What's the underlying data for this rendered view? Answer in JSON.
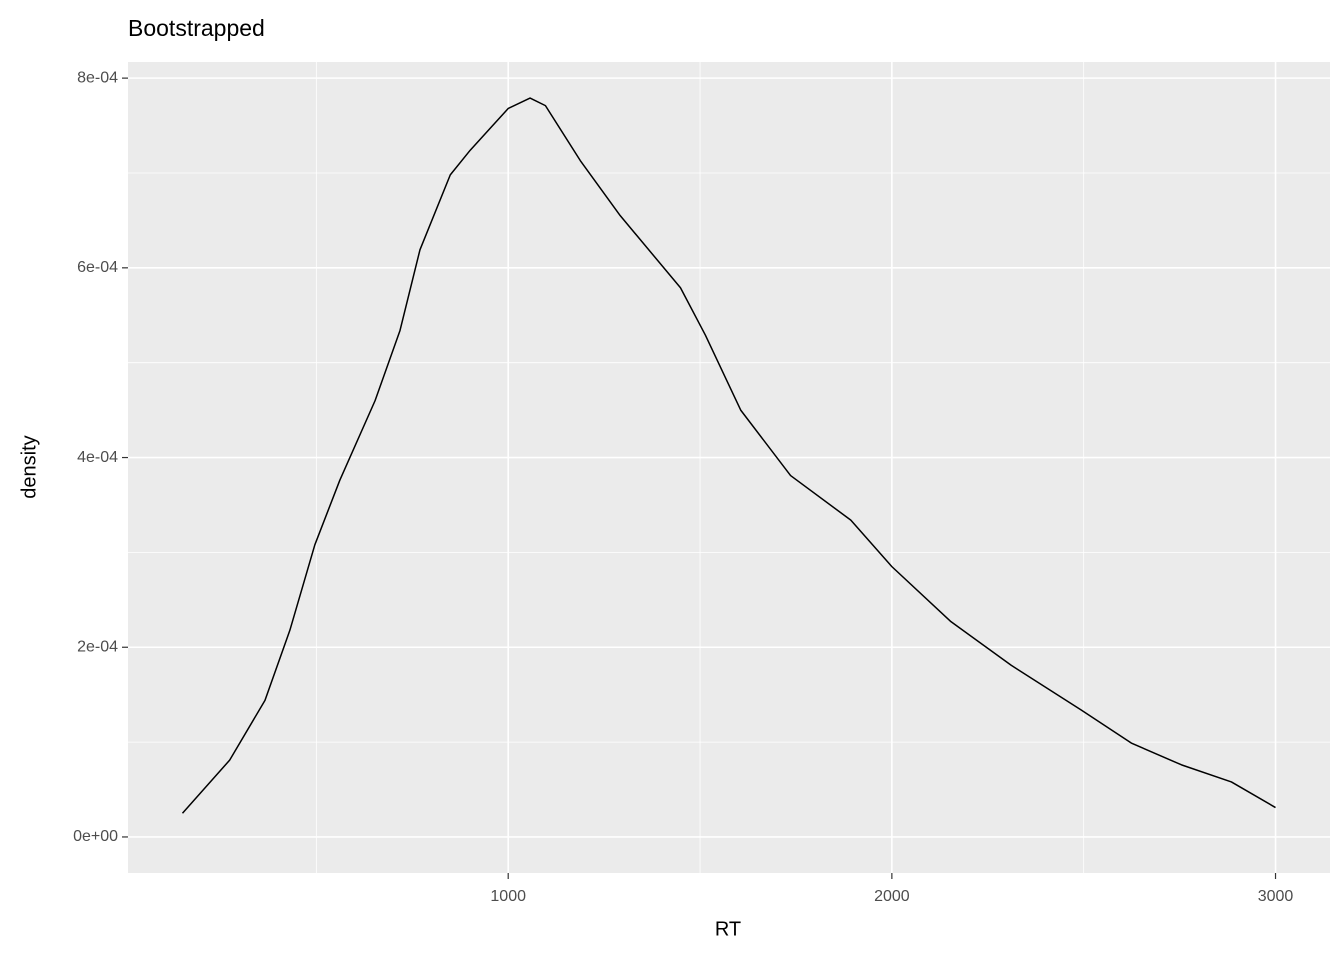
{
  "chart_data": {
    "type": "line",
    "title": "Bootstrapped",
    "x_label": "RT",
    "y_label": "density",
    "x": [
      151,
      274,
      366,
      431,
      496,
      561,
      653,
      718,
      770,
      849,
      901,
      1000,
      1057,
      1097,
      1188,
      1292,
      1449,
      1514,
      1606,
      1736,
      1893,
      2000,
      2154,
      2311,
      2493,
      2624,
      2755,
      2885,
      3000
    ],
    "values": [
      2.5e-05,
      8.1e-05,
      0.000144,
      0.000218,
      0.000308,
      0.000376,
      0.00046,
      0.000534,
      0.000619,
      0.000698,
      0.000724,
      0.000768,
      0.000779,
      0.000771,
      0.000713,
      0.000655,
      0.000579,
      0.000529,
      0.00045,
      0.000381,
      0.000334,
      0.000285,
      0.000227,
      0.000181,
      0.000134,
      9.9e-05,
      7.6e-05,
      5.8e-05,
      3.1e-05
    ],
    "color": "#000000",
    "xlim": [
      9,
      3142
    ],
    "ylim": [
      -3.8e-05,
      0.000817
    ],
    "xticks": [
      1000,
      2000,
      3000
    ],
    "yticks": [
      {
        "value": 0,
        "label": "0e+00"
      },
      {
        "value": 0.0002,
        "label": "2e-04"
      },
      {
        "value": 0.0004,
        "label": "4e-04"
      },
      {
        "value": 0.0006,
        "label": "6e-04"
      },
      {
        "value": 0.0008,
        "label": "8e-04"
      }
    ],
    "x_minor_grid": [
      500,
      1500,
      2500
    ],
    "y_minor_grid": [
      0.0001,
      0.0003,
      0.0005,
      0.0007
    ],
    "grid": true
  }
}
